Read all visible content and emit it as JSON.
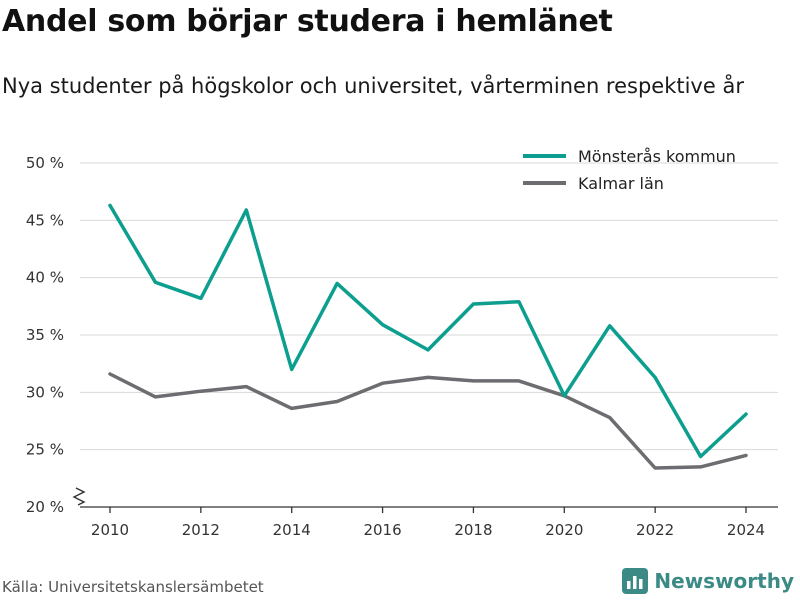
{
  "title": "Andel som börjar studera i hemlänet",
  "subtitle": "Nya studenter på högskolor och universitet, vårterminen respektive år",
  "source": "Källa: Universitetskanslersämbetet",
  "brand": {
    "name": "Newsworthy",
    "icon": "bar-chart-logo-icon",
    "color": "#3b8a85"
  },
  "chart_data": {
    "type": "line",
    "x": [
      2010,
      2011,
      2012,
      2013,
      2014,
      2015,
      2016,
      2017,
      2018,
      2019,
      2020,
      2021,
      2022,
      2023,
      2024
    ],
    "x_ticks": [
      2010,
      2012,
      2014,
      2016,
      2018,
      2020,
      2022,
      2024
    ],
    "x_tick_labels": [
      "2010",
      "2012",
      "2014",
      "2016",
      "2018",
      "2020",
      "2022",
      "2024"
    ],
    "ylim": [
      20,
      50
    ],
    "y_ticks": [
      20,
      25,
      30,
      35,
      40,
      45,
      50
    ],
    "y_tick_labels": [
      "20 %",
      "25 %",
      "30 %",
      "35 %",
      "40 %",
      "45 %",
      "50 %"
    ],
    "y_axis_break": true,
    "grid": "horizontal",
    "legend_position": "top-right",
    "series": [
      {
        "name": "Mönsterås kommun",
        "color": "#0c9e8e",
        "values": [
          46.3,
          39.6,
          38.2,
          45.9,
          32.0,
          39.5,
          35.9,
          33.7,
          37.7,
          37.9,
          29.7,
          35.8,
          31.3,
          24.4,
          28.1
        ]
      },
      {
        "name": "Kalmar län",
        "color": "#6d6c71",
        "values": [
          31.6,
          29.6,
          30.1,
          30.5,
          28.6,
          29.2,
          30.8,
          31.3,
          31.0,
          31.0,
          29.7,
          27.8,
          23.4,
          23.5,
          24.5
        ]
      }
    ]
  }
}
